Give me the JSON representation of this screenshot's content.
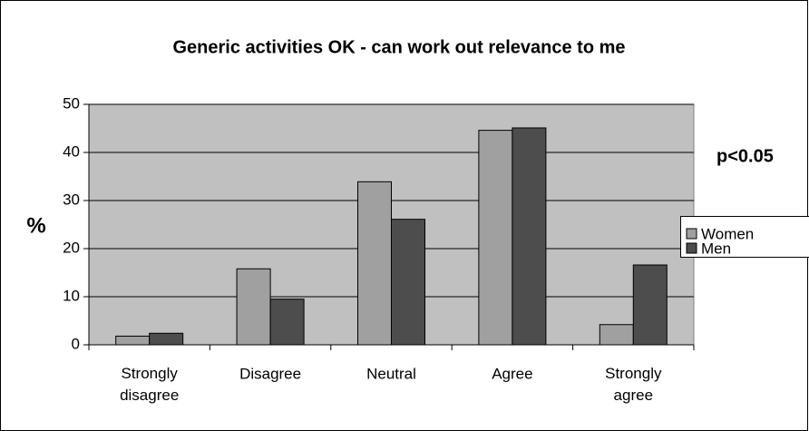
{
  "chart_data": {
    "type": "bar",
    "title": "Generic activities OK - can work out relevance to me",
    "annotation": "p<0.05",
    "ylabel": "%",
    "categories": [
      "Strongly disagree",
      "Disagree",
      "Neutral",
      "Agree",
      "Strongly agree"
    ],
    "series": [
      {
        "name": "Women",
        "color": "#a0a0a0",
        "values": [
          1.8,
          15.8,
          33.9,
          44.6,
          4.2
        ]
      },
      {
        "name": "Men",
        "color": "#4d4d4d",
        "values": [
          2.4,
          9.5,
          26.1,
          45.1,
          16.6
        ]
      }
    ],
    "ylim": [
      0,
      50
    ],
    "yticks": [
      0,
      10,
      20,
      30,
      40,
      50
    ],
    "grid": true,
    "legend": "right",
    "plot_background": "#c0c0c0"
  }
}
